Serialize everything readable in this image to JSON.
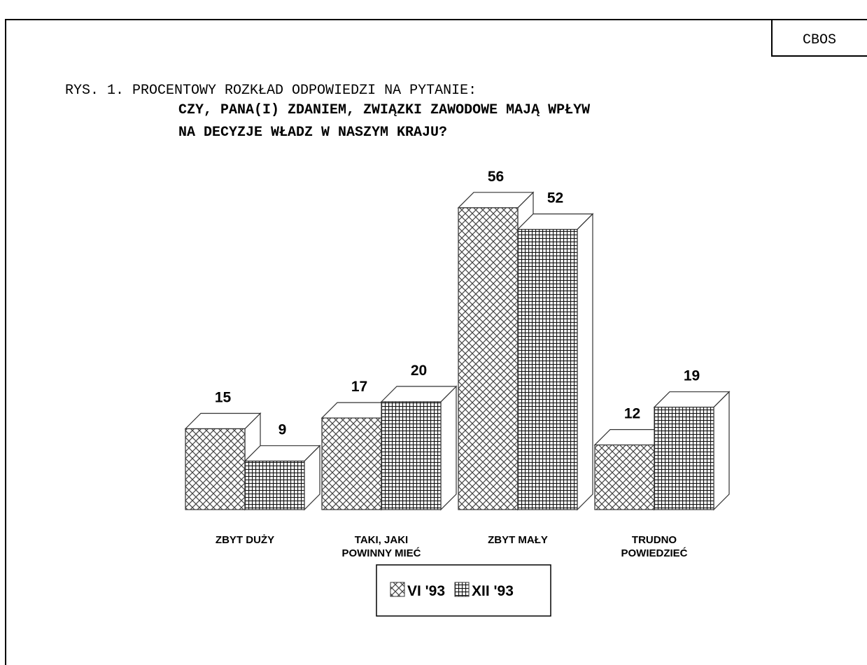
{
  "chart_data": {
    "type": "bar3d",
    "source": "CBOS",
    "title": "RYS. 1. PROCENTOWY ROZKŁAD ODPOWIEDZI NA PYTANIE:",
    "subtitle": "CZY, PANA(I) ZDANIEM, ZWIĄZKI ZAWODOWE MAJĄ WPŁYW\nNA DECYZJE WŁADZ W NASZYM KRAJU?",
    "categories": [
      "ZBYT DUŻY",
      "TAKI, JAKI\nPOWINNY MIEĆ",
      "ZBYT MAŁY",
      "TRUDNO\nPOWIEDZIEĆ"
    ],
    "series": [
      {
        "name": "VI '93",
        "color": "#444444",
        "values": [
          15,
          17,
          56,
          12
        ]
      },
      {
        "name": "XII '93",
        "color": "#111111",
        "values": [
          9,
          20,
          52,
          19
        ]
      }
    ]
  }
}
